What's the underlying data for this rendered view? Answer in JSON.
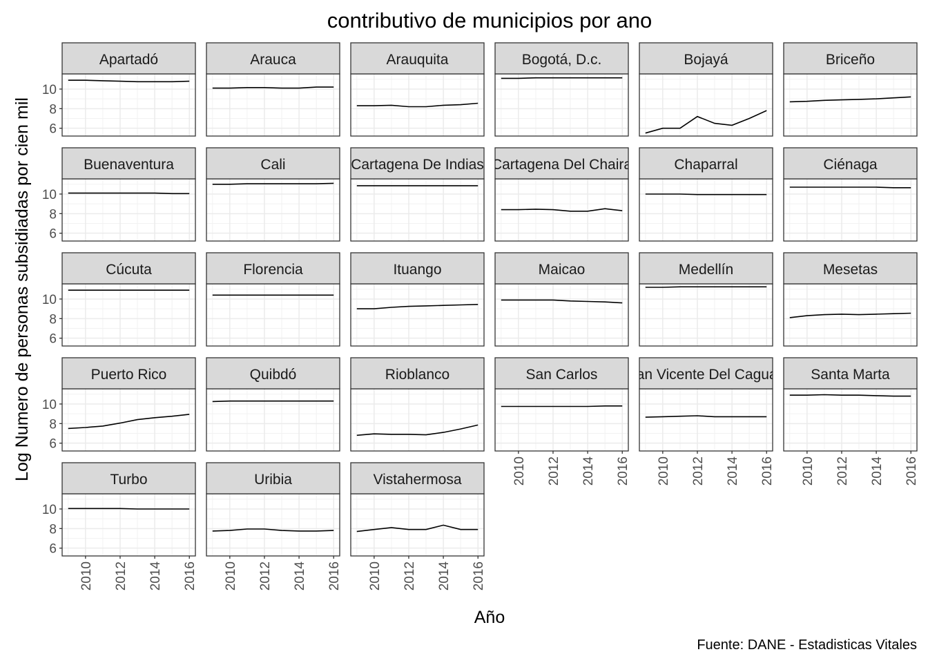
{
  "chart_data": {
    "type": "line",
    "title": "contributivo de municipios por ano",
    "xlabel": "Año",
    "ylabel": "Log Numero de personas subsidiadas por cien mil",
    "caption": "Fuente: DANE - Estadisticas Vitales",
    "x": [
      2009,
      2010,
      2011,
      2012,
      2013,
      2014,
      2015,
      2016
    ],
    "xlim": [
      2008.65,
      2016.35
    ],
    "ylim": [
      5.2,
      11.55
    ],
    "x_ticks": [
      2010,
      2012,
      2014,
      2016
    ],
    "y_ticks": [
      6,
      8,
      10
    ],
    "grid": true,
    "line_color": "#000000",
    "strip_fill": "#d9d9d9",
    "facets": [
      {
        "name": "Apartadó",
        "values": [
          10.9,
          10.9,
          10.85,
          10.8,
          10.75,
          10.75,
          10.75,
          10.8
        ]
      },
      {
        "name": "Arauca",
        "values": [
          10.1,
          10.1,
          10.15,
          10.15,
          10.1,
          10.1,
          10.2,
          10.2
        ]
      },
      {
        "name": "Arauquita",
        "values": [
          8.3,
          8.3,
          8.35,
          8.2,
          8.2,
          8.35,
          8.4,
          8.55
        ]
      },
      {
        "name": "Bogotá, D.c.",
        "values": [
          11.1,
          11.1,
          11.15,
          11.15,
          11.15,
          11.15,
          11.15,
          11.15
        ]
      },
      {
        "name": "Bojayá",
        "values": [
          5.5,
          6.0,
          6.0,
          7.2,
          6.5,
          6.3,
          7.0,
          7.8
        ]
      },
      {
        "name": "Briceño",
        "values": [
          8.7,
          8.75,
          8.85,
          8.9,
          8.95,
          9.0,
          9.1,
          9.2
        ]
      },
      {
        "name": "Buenaventura",
        "values": [
          10.1,
          10.1,
          10.1,
          10.1,
          10.1,
          10.1,
          10.05,
          10.05
        ]
      },
      {
        "name": "Cali",
        "values": [
          11.0,
          11.0,
          11.05,
          11.05,
          11.05,
          11.05,
          11.05,
          11.1
        ]
      },
      {
        "name": "Cartagena De Indias",
        "values": [
          10.85,
          10.85,
          10.85,
          10.85,
          10.85,
          10.85,
          10.85,
          10.85
        ]
      },
      {
        "name": "Cartagena Del Chaira",
        "values": [
          8.4,
          8.4,
          8.45,
          8.4,
          8.25,
          8.25,
          8.5,
          8.3
        ]
      },
      {
        "name": "Chaparral",
        "values": [
          10.0,
          10.0,
          10.0,
          9.95,
          9.95,
          9.95,
          9.95,
          9.95
        ]
      },
      {
        "name": "Ciénaga",
        "values": [
          10.7,
          10.7,
          10.7,
          10.7,
          10.7,
          10.7,
          10.65,
          10.65
        ]
      },
      {
        "name": "Cúcuta",
        "values": [
          10.9,
          10.9,
          10.9,
          10.9,
          10.9,
          10.9,
          10.9,
          10.9
        ]
      },
      {
        "name": "Florencia",
        "values": [
          10.4,
          10.4,
          10.4,
          10.4,
          10.4,
          10.4,
          10.4,
          10.4
        ]
      },
      {
        "name": "Ituango",
        "values": [
          9.0,
          9.0,
          9.15,
          9.25,
          9.3,
          9.35,
          9.4,
          9.45
        ]
      },
      {
        "name": "Maicao",
        "values": [
          9.9,
          9.9,
          9.9,
          9.9,
          9.8,
          9.75,
          9.7,
          9.6
        ]
      },
      {
        "name": "Medellín",
        "values": [
          11.2,
          11.2,
          11.25,
          11.25,
          11.25,
          11.25,
          11.25,
          11.25
        ]
      },
      {
        "name": "Mesetas",
        "values": [
          8.1,
          8.3,
          8.4,
          8.45,
          8.4,
          8.45,
          8.5,
          8.55
        ]
      },
      {
        "name": "Puerto Rico",
        "values": [
          7.5,
          7.6,
          7.75,
          8.05,
          8.4,
          8.6,
          8.75,
          8.95
        ]
      },
      {
        "name": "Quibdó",
        "values": [
          10.25,
          10.3,
          10.3,
          10.3,
          10.3,
          10.3,
          10.3,
          10.3
        ]
      },
      {
        "name": "Rioblanco",
        "values": [
          6.8,
          6.95,
          6.9,
          6.9,
          6.85,
          7.1,
          7.45,
          7.85
        ]
      },
      {
        "name": "San Carlos",
        "values": [
          9.75,
          9.75,
          9.75,
          9.75,
          9.75,
          9.75,
          9.8,
          9.8
        ]
      },
      {
        "name": "San Vicente Del Caguan",
        "values": [
          8.65,
          8.7,
          8.75,
          8.8,
          8.7,
          8.7,
          8.7,
          8.7
        ]
      },
      {
        "name": "Santa Marta",
        "values": [
          10.9,
          10.9,
          10.95,
          10.9,
          10.9,
          10.85,
          10.8,
          10.8
        ]
      },
      {
        "name": "Turbo",
        "values": [
          10.05,
          10.05,
          10.05,
          10.05,
          10.0,
          10.0,
          10.0,
          10.0
        ]
      },
      {
        "name": "Uribia",
        "values": [
          7.75,
          7.8,
          7.95,
          7.95,
          7.8,
          7.75,
          7.75,
          7.8
        ]
      },
      {
        "name": "Vistahermosa",
        "values": [
          7.7,
          7.9,
          8.1,
          7.9,
          7.9,
          8.35,
          7.9,
          7.9
        ]
      }
    ]
  }
}
